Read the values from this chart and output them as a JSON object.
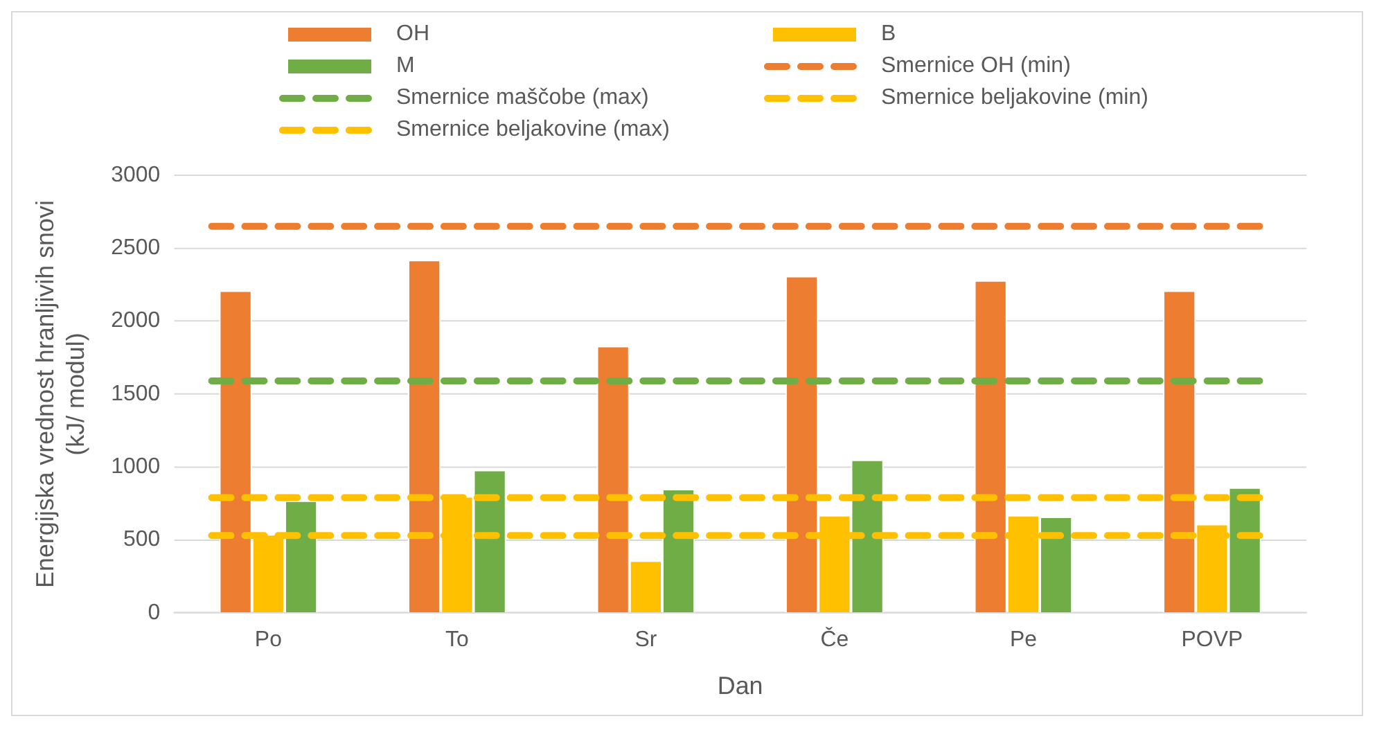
{
  "chart_data": {
    "type": "bar",
    "xlabel": "Dan",
    "ylabel": "Energijska vrednost hranljivih snovi (kJ/ modul)",
    "categories": [
      "Po",
      "To",
      "Sr",
      "Če",
      "Pe",
      "POVP"
    ],
    "series": [
      {
        "name": "OH",
        "color": "#ed7d31",
        "values": [
          2210,
          2420,
          1830,
          2310,
          2280,
          2210
        ]
      },
      {
        "name": "B",
        "color": "#ffc000",
        "values": [
          540,
          800,
          360,
          670,
          670,
          610
        ]
      },
      {
        "name": "M",
        "color": "#70ad47",
        "values": [
          770,
          980,
          850,
          1050,
          660,
          860
        ]
      }
    ],
    "ref_lines": [
      {
        "axis": "y",
        "value": 2650,
        "label": "Smernice OH (min)",
        "color": "#ed7d31",
        "line_style": "dashed"
      },
      {
        "axis": "y",
        "value": 1590,
        "label": "Smernice maščobe (max)",
        "color": "#70ad47",
        "line_style": "dashed"
      },
      {
        "axis": "y",
        "value": 530,
        "label": "Smernice beljakovine (min)",
        "color": "#ffc000",
        "line_style": "dashed"
      },
      {
        "axis": "y",
        "value": 790,
        "label": "Smernice beljakovine (max)",
        "color": "#ffc000",
        "line_style": "dashed"
      }
    ],
    "ylim": [
      0,
      3000
    ],
    "yticks": [
      0,
      500,
      1000,
      1500,
      2000,
      2500,
      3000
    ],
    "grid": "y",
    "legend": "top"
  }
}
